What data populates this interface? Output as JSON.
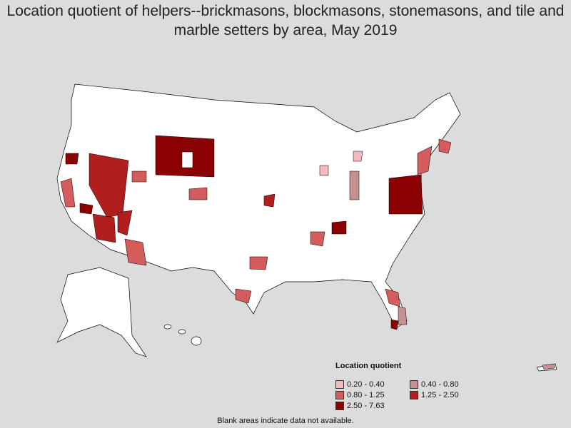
{
  "title": "Location quotient of helpers--brickmasons, blockmasons, stonemasons, and tile and marble setters by area, May 2019",
  "legend": {
    "title": "Location quotient",
    "items": [
      {
        "label": "0.20 - 0.40",
        "color": "#f4b8c0"
      },
      {
        "label": "0.40 - 0.80",
        "color": "#c49090"
      },
      {
        "label": "0.80 - 1.25",
        "color": "#d45c5c"
      },
      {
        "label": "1.25 - 2.50",
        "color": "#b01e1e"
      },
      {
        "label": "2.50 - 7.63",
        "color": "#8b0000"
      }
    ]
  },
  "note": "Blank areas indicate data not available."
}
